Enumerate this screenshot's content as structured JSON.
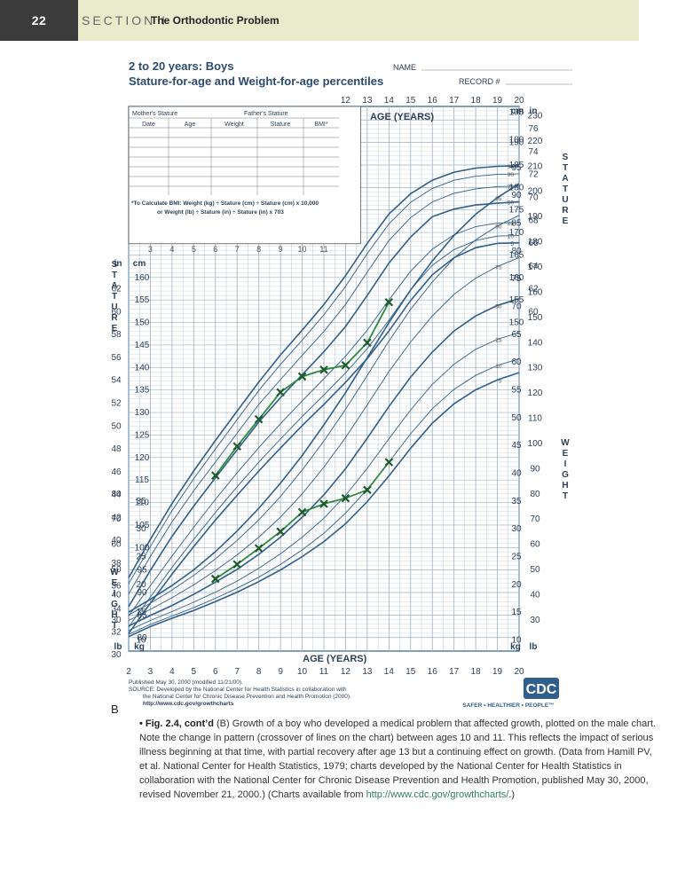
{
  "header": {
    "page_number": "22",
    "section": "SECTION I",
    "chapter_title": "The Orthodontic Problem"
  },
  "chart_data": {
    "type": "line",
    "title": "2 to 20 years: Boys",
    "subtitle": "Stature-for-age and Weight-for-age percentiles",
    "name_label": "NAME",
    "record_label": "RECORD #",
    "xlabel": "AGE (YEARS)",
    "x_ticks": [
      2,
      3,
      4,
      5,
      6,
      7,
      8,
      9,
      10,
      11,
      12,
      13,
      14,
      15,
      16,
      17,
      18,
      19,
      20
    ],
    "xlim": [
      2,
      20
    ],
    "stature": {
      "ylabel": "STATURE",
      "ylim_cm": [
        77,
        198
      ],
      "cm_ticks_left": [
        80,
        85,
        90,
        95,
        100,
        105,
        110,
        115,
        120,
        125,
        130,
        135,
        140,
        145,
        150,
        155,
        160
      ],
      "in_ticks_left": [
        30,
        32,
        34,
        36,
        38,
        40,
        42,
        44,
        46,
        48,
        50,
        52,
        54,
        56,
        58,
        60,
        62
      ],
      "cm_ticks_right": [
        150,
        155,
        160,
        165,
        170,
        175,
        180,
        185,
        190
      ],
      "in_ticks_right": [
        60,
        62,
        64,
        66,
        68,
        70,
        72,
        74,
        76
      ],
      "percentiles": [
        {
          "name": "5",
          "values": [
            80.9,
            87.6,
            94.1,
            100.2,
            106.1,
            111.6,
            117.0,
            122.1,
            127.1,
            131.8,
            136.7,
            142.0,
            148.1,
            154.9,
            160.6,
            164.4,
            166.6,
            167.6,
            167.7
          ]
        },
        {
          "name": "10",
          "values": [
            82.4,
            89.0,
            95.6,
            101.8,
            107.8,
            113.5,
            119.0,
            124.1,
            129.1,
            133.9,
            138.8,
            144.2,
            150.5,
            157.3,
            162.7,
            166.2,
            168.2,
            169.2,
            169.3
          ]
        },
        {
          "name": "25",
          "values": [
            84.8,
            91.5,
            98.1,
            104.5,
            110.7,
            116.6,
            122.2,
            127.5,
            132.6,
            137.5,
            142.5,
            148.3,
            155.0,
            161.4,
            166.3,
            169.5,
            171.3,
            172.1,
            172.2
          ]
        },
        {
          "name": "50",
          "values": [
            86.9,
            94.9,
            102.5,
            109.2,
            115.5,
            121.7,
            127.9,
            133.3,
            138.4,
            143.5,
            149.1,
            156.0,
            163.2,
            169.0,
            173.5,
            175.2,
            176.1,
            176.5,
            176.8
          ]
        },
        {
          "name": "75",
          "values": [
            89.7,
            98.0,
            105.7,
            112.6,
            119.0,
            125.4,
            131.8,
            137.3,
            142.7,
            148.0,
            154.0,
            161.2,
            168.2,
            173.3,
            176.8,
            178.7,
            179.7,
            180.2,
            180.3
          ]
        },
        {
          "name": "90",
          "values": [
            92.0,
            100.2,
            108.2,
            115.3,
            121.9,
            128.4,
            134.9,
            140.7,
            146.1,
            151.7,
            158.0,
            165.3,
            171.9,
            176.7,
            179.8,
            181.6,
            182.5,
            182.9,
            183.0
          ]
        },
        {
          "name": "95",
          "values": [
            93.3,
            101.8,
            109.8,
            117.0,
            123.8,
            130.3,
            136.8,
            142.8,
            148.3,
            154.0,
            160.4,
            167.6,
            174.1,
            178.6,
            181.6,
            183.4,
            184.3,
            184.7,
            184.8
          ]
        }
      ],
      "patient": {
        "ages": [
          6,
          7,
          8,
          9,
          10,
          11,
          12,
          13,
          14
        ],
        "values_cm": [
          116,
          122.5,
          128.5,
          134.5,
          138,
          139.5,
          140.5,
          145.5,
          154.5
        ]
      }
    },
    "weight": {
      "ylabel": "WEIGHT",
      "ylim_kg": [
        8,
        106
      ],
      "kg_ticks_left": [
        10,
        15,
        20,
        25,
        30,
        35
      ],
      "lb_ticks_left": [
        30,
        40,
        50,
        60,
        70,
        80
      ],
      "kg_ticks_right": [
        10,
        15,
        20,
        25,
        30,
        35,
        40,
        45,
        50,
        55,
        60,
        65,
        70,
        75,
        80,
        85,
        90,
        95,
        100,
        105
      ],
      "lb_ticks_right": [
        30,
        40,
        50,
        60,
        70,
        80,
        90,
        100,
        110,
        120,
        130,
        140,
        150,
        160,
        170,
        180,
        190,
        200,
        210,
        220,
        230
      ],
      "percentiles": [
        {
          "name": "5",
          "values": [
            10.6,
            12.4,
            13.9,
            15.3,
            16.9,
            18.6,
            20.5,
            22.6,
            25.0,
            27.7,
            30.9,
            34.9,
            39.5,
            44.5,
            49.0,
            52.5,
            55.0,
            56.8,
            58.1
          ]
        },
        {
          "name": "10",
          "values": [
            11.0,
            12.8,
            14.3,
            15.8,
            17.5,
            19.3,
            21.3,
            23.6,
            26.2,
            29.2,
            32.8,
            37.1,
            42.0,
            47.1,
            51.6,
            55.1,
            57.6,
            59.4,
            60.6
          ]
        },
        {
          "name": "25",
          "values": [
            11.7,
            13.5,
            15.1,
            16.8,
            18.6,
            20.6,
            22.9,
            25.5,
            28.5,
            31.9,
            36.0,
            40.9,
            46.2,
            51.4,
            56.0,
            59.6,
            62.3,
            64.1,
            65.3
          ]
        },
        {
          "name": "50",
          "values": [
            12.5,
            14.4,
            16.2,
            18.2,
            20.4,
            22.7,
            25.4,
            28.5,
            32.1,
            36.1,
            40.8,
            46.3,
            52.0,
            57.3,
            61.8,
            65.6,
            68.3,
            70.2,
            71.4
          ]
        },
        {
          "name": "75",
          "values": [
            13.5,
            15.5,
            17.6,
            19.9,
            22.5,
            25.3,
            28.5,
            32.1,
            36.3,
            41.1,
            46.4,
            52.3,
            58.3,
            63.6,
            68.3,
            72.2,
            75.1,
            77.2,
            78.8
          ]
        },
        {
          "name": "90",
          "values": [
            14.5,
            16.6,
            19.0,
            21.6,
            24.6,
            27.9,
            31.6,
            35.8,
            40.6,
            45.8,
            51.5,
            57.6,
            63.8,
            69.5,
            74.4,
            78.7,
            82.0,
            84.5,
            86.4
          ]
        },
        {
          "name": "95",
          "values": [
            15.0,
            17.3,
            19.8,
            22.6,
            25.9,
            29.6,
            33.7,
            38.2,
            43.2,
            48.7,
            54.5,
            60.8,
            67.1,
            73.0,
            78.2,
            82.8,
            86.6,
            89.6,
            92.1
          ]
        }
      ],
      "patient": {
        "ages": [
          6,
          7,
          8,
          9,
          10,
          11,
          12,
          13,
          14
        ],
        "values_kg": [
          21,
          23.6,
          26.5,
          29.5,
          33,
          34.5,
          35.5,
          37,
          42
        ]
      }
    },
    "record_table": {
      "mother_label": "Mother's Stature",
      "father_label": "Father's Stature",
      "columns": [
        "Date",
        "Age",
        "Weight",
        "Stature",
        "BMI*"
      ]
    },
    "bmi_note_1": "*To Calculate BMI: Weight (kg) ÷ Stature (cm) ÷ Stature (cm) x 10,000",
    "bmi_note_2": "or Weight (lb) ÷ Stature (in) ÷ Stature (in) x 703",
    "unit_labels": {
      "cm": "cm",
      "in": "in",
      "kg": "kg",
      "lb": "lb"
    },
    "footer": {
      "published": "Published May 30, 2000 (modified 11/21/00).",
      "source_1": "SOURCE: Developed by the National Center for Health Statistics in collaboration with",
      "source_2": "the National Center for Chronic Disease Prevention and Health Promotion (2000).",
      "url": "http://www.cdc.gov/growthcharts",
      "logo_text": "CDC",
      "tagline": "SAFER • HEALTHIER • PEOPLE™"
    },
    "colors": {
      "percentile": "#2f5f8a",
      "grid": "#9bb0c4",
      "patient": "#2d8a3e",
      "patient_marker": "#1f5a2a"
    }
  },
  "panel_label": "B",
  "caption": {
    "fig_label": "• Fig. 2.4, cont’d",
    "text": " (B) Growth of a boy who developed a medical problem that affected growth, plotted on the male chart. Note the change in pattern (crossover of lines on the chart) between ages 10 and 11. This reflects the impact of serious illness beginning at that time, with partial recovery after age 13 but a continuing effect on growth. (Data from Hamill PV, et al. National Center for Health Statistics, 1979; charts developed by the National Center for Health Statistics in collaboration with the National Center for Chronic Disease Prevention and Health Promotion, published May 30, 2000, revised November 21, 2000.) (Charts available from ",
    "link": "http://www.cdc.gov/growthcharts/",
    "end": ".)"
  }
}
